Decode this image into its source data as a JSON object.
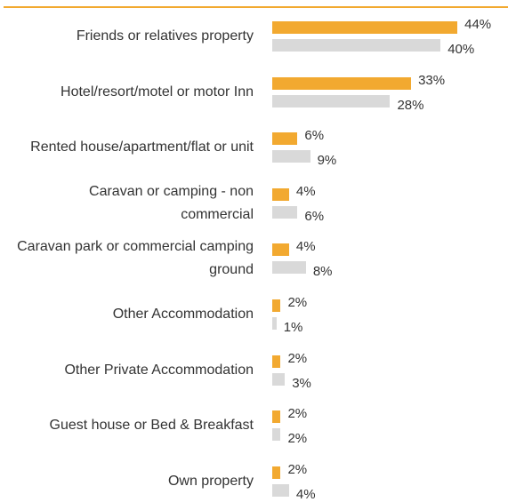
{
  "chart_data": {
    "type": "bar",
    "orientation": "horizontal",
    "categories": [
      "Friends or relatives property",
      "Hotel/resort/motel or motor Inn",
      "Rented house/apartment/flat or unit",
      "Caravan or camping - non commercial",
      "Caravan park or commercial camping ground",
      "Other Accommodation",
      "Other Private Accommodation",
      "Guest house or Bed & Breakfast",
      "Own property"
    ],
    "series": [
      {
        "color": "#f2a930",
        "values": [
          44,
          33,
          6,
          4,
          4,
          2,
          2,
          2,
          2
        ],
        "value_labels": [
          "44%",
          "33%",
          "6%",
          "4%",
          "4%",
          "2%",
          "2%",
          "2%",
          "2%"
        ]
      },
      {
        "color": "#d9d9d9",
        "values": [
          40,
          28,
          9,
          6,
          8,
          1,
          3,
          2,
          4
        ],
        "value_labels": [
          "40%",
          "28%",
          "9%",
          "6%",
          "8%",
          "1%",
          "3%",
          "2%",
          "4%"
        ]
      }
    ]
  }
}
